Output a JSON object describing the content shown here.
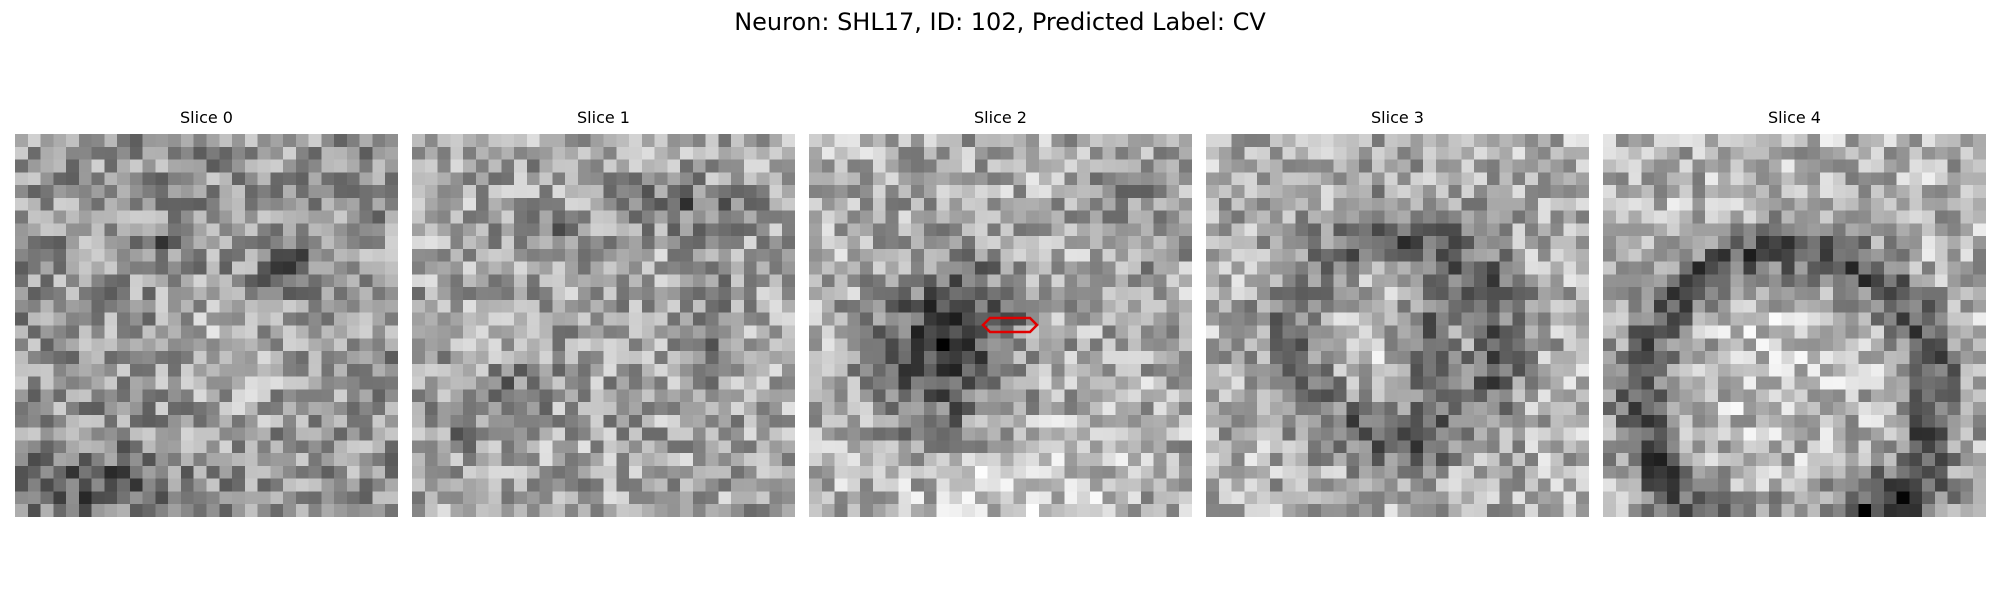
{
  "figure": {
    "title": "Neuron: SHL17, ID: 102, Predicted Label: CV"
  },
  "panels": [
    {
      "title": "Slice 0",
      "grid_size": 30,
      "pattern": "noise-dark-spots",
      "has_marker": false
    },
    {
      "title": "Slice 1",
      "grid_size": 30,
      "pattern": "noise-dark-streaks",
      "has_marker": false
    },
    {
      "title": "Slice 2",
      "grid_size": 30,
      "pattern": "dark-blob-left",
      "has_marker": true
    },
    {
      "title": "Slice 3",
      "grid_size": 30,
      "pattern": "ring-center",
      "has_marker": false
    },
    {
      "title": "Slice 4",
      "grid_size": 30,
      "pattern": "ring-large",
      "has_marker": false
    }
  ],
  "marker": {
    "color": "#e00000",
    "shape": "hexagon-outline"
  },
  "colormap": "grayscale"
}
